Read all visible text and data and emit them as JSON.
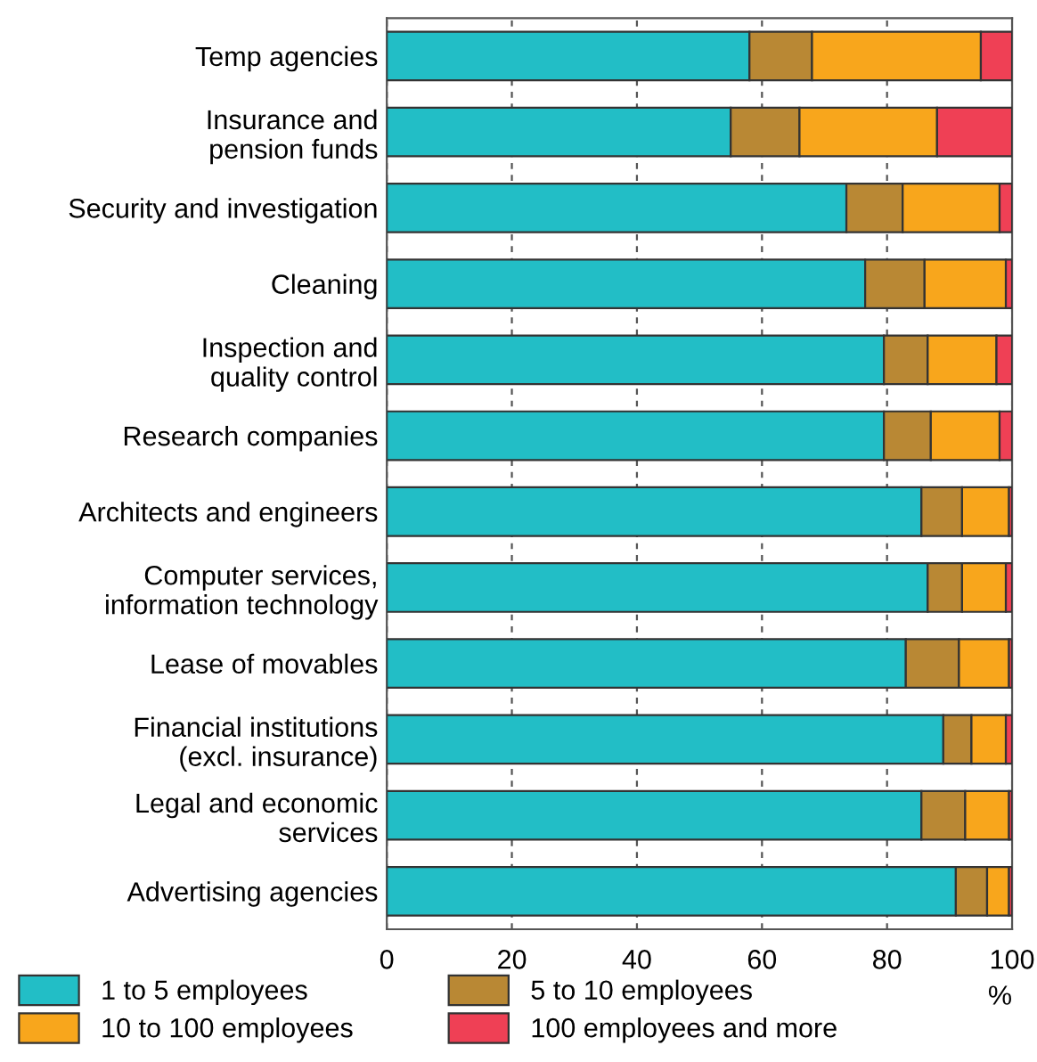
{
  "chart_data": {
    "type": "bar",
    "orientation": "horizontal",
    "stacked": true,
    "categories": [
      "Temp agencies",
      "Insurance and\npension funds",
      "Security and investigation",
      "Cleaning",
      "Inspection and\nquality control",
      "Research companies",
      "Architects and engineers",
      "Computer services,\ninformation technology",
      "Lease of movables",
      "Financial institutions\n(excl. insurance)",
      "Legal and economic\nservices",
      "Advertising agencies"
    ],
    "series": [
      {
        "name": "1 to 5 employees",
        "color": "#22bec6",
        "values": [
          58,
          55,
          73.5,
          76.5,
          79.5,
          79.5,
          85.5,
          86.5,
          83,
          89,
          85.5,
          91
        ]
      },
      {
        "name": "5 to 10 employees",
        "color": "#b98834",
        "values": [
          10,
          11,
          9,
          9.5,
          7,
          7.5,
          6.5,
          5.5,
          8.5,
          4.5,
          7,
          5
        ]
      },
      {
        "name": "10 to 100 employees",
        "color": "#f8a61c",
        "values": [
          27,
          22,
          15.5,
          13,
          11,
          11,
          7.5,
          7,
          8,
          5.5,
          7,
          3.5
        ]
      },
      {
        "name": "100 employees and more",
        "color": "#ef4055",
        "values": [
          5,
          12,
          2,
          1,
          2.5,
          2,
          0.5,
          1,
          0.5,
          1,
          0.5,
          0.5
        ]
      }
    ],
    "xlabel": "%",
    "xlim": [
      0,
      100
    ],
    "xticks": [
      0,
      20,
      40,
      60,
      80,
      100
    ],
    "grid": "x",
    "legend": "bottom"
  }
}
